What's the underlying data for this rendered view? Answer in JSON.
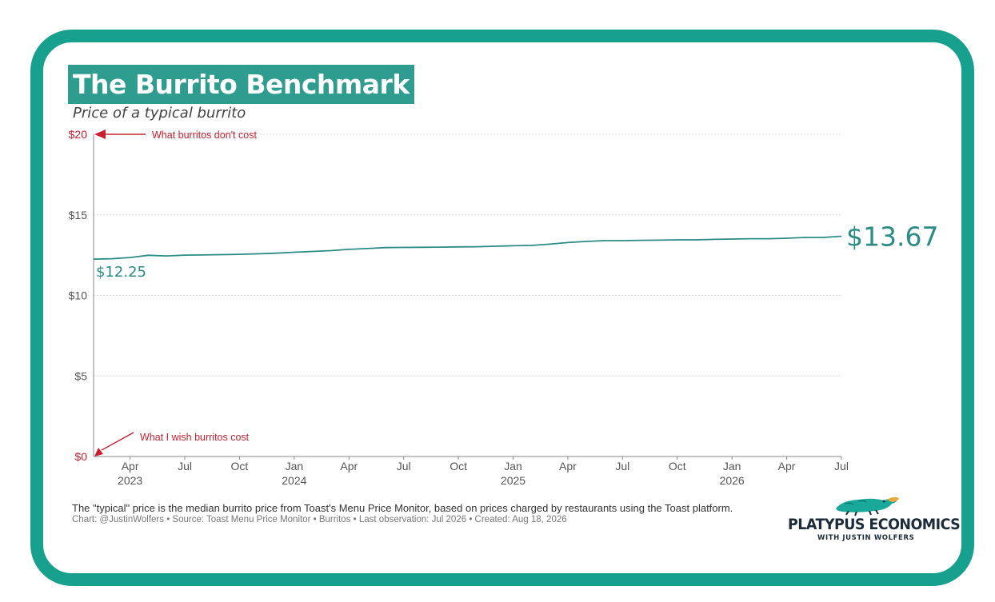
{
  "title": "The Burrito Benchmark",
  "subtitle": "Price of a typical burrito",
  "caption": "The \"typical\" price is the median burrito price from Toast's Menu Price Monitor, based on prices charged by restaurants using the Toast platform.",
  "credit": "Chart: @JustinWolfers • Source: Toast Menu Price Monitor • Burritos • Last observation: Jul 2026 • Created: Aug 18, 2026",
  "logo": {
    "name": "PLATYPUS ECONOMICS",
    "tagline": "WITH JUSTIN WOLFERS"
  },
  "colors": {
    "frame": "#17a08d",
    "title_bg": "#2e9c8f",
    "line": "#2a8c84",
    "annotation": "#c8202f"
  },
  "chart_data": {
    "type": "line",
    "title": "The Burrito Benchmark",
    "subtitle": "Price of a typical burrito",
    "ylim": [
      0,
      20
    ],
    "y_ticks": [
      "$0",
      "$5",
      "$10",
      "$15",
      "$20"
    ],
    "y_tick_values": [
      0,
      5,
      10,
      15,
      20
    ],
    "x_range": [
      "2023-02",
      "2026-07"
    ],
    "x_ticks": [
      {
        "date": "2023-04",
        "month": "Apr",
        "year": "2023"
      },
      {
        "date": "2023-07",
        "month": "Jul",
        "year": ""
      },
      {
        "date": "2023-10",
        "month": "Oct",
        "year": ""
      },
      {
        "date": "2024-01",
        "month": "Jan",
        "year": "2024"
      },
      {
        "date": "2024-04",
        "month": "Apr",
        "year": ""
      },
      {
        "date": "2024-07",
        "month": "Jul",
        "year": ""
      },
      {
        "date": "2024-10",
        "month": "Oct",
        "year": ""
      },
      {
        "date": "2025-01",
        "month": "Jan",
        "year": "2025"
      },
      {
        "date": "2025-04",
        "month": "Apr",
        "year": ""
      },
      {
        "date": "2025-07",
        "month": "Jul",
        "year": ""
      },
      {
        "date": "2025-10",
        "month": "Oct",
        "year": ""
      },
      {
        "date": "2026-01",
        "month": "Jan",
        "year": "2026"
      },
      {
        "date": "2026-04",
        "month": "Apr",
        "year": ""
      },
      {
        "date": "2026-07",
        "month": "Jul",
        "year": ""
      }
    ],
    "grid": true,
    "series": [
      {
        "x": [
          "2023-02",
          "2023-03",
          "2023-04",
          "2023-05",
          "2023-06",
          "2023-07",
          "2023-08",
          "2023-09",
          "2023-10",
          "2023-11",
          "2023-12",
          "2024-01",
          "2024-02",
          "2024-03",
          "2024-04",
          "2024-05",
          "2024-06",
          "2024-07",
          "2024-08",
          "2024-09",
          "2024-10",
          "2024-11",
          "2024-12",
          "2025-01",
          "2025-02",
          "2025-03",
          "2025-04",
          "2025-05",
          "2025-06",
          "2025-07",
          "2025-08",
          "2025-09",
          "2025-10",
          "2025-11",
          "2025-12",
          "2026-01",
          "2026-02",
          "2026-03",
          "2026-04",
          "2026-05",
          "2026-06",
          "2026-07"
        ],
        "values": [
          12.25,
          12.28,
          12.35,
          12.49,
          12.45,
          12.5,
          12.51,
          12.53,
          12.55,
          12.58,
          12.62,
          12.68,
          12.73,
          12.78,
          12.86,
          12.91,
          12.97,
          12.98,
          12.99,
          13.0,
          13.01,
          13.02,
          13.05,
          13.08,
          13.1,
          13.18,
          13.28,
          13.35,
          13.4,
          13.4,
          13.42,
          13.43,
          13.45,
          13.45,
          13.48,
          13.5,
          13.52,
          13.52,
          13.55,
          13.6,
          13.6,
          13.67
        ]
      }
    ],
    "labels": {
      "start": "$12.25",
      "end": "$13.67"
    },
    "annotations": [
      {
        "text": "What burritos don't cost",
        "y": 20
      },
      {
        "text": "What I wish burritos cost",
        "y": 0
      }
    ]
  }
}
